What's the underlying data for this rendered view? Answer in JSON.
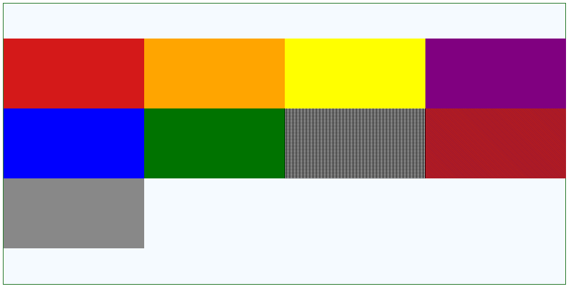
{
  "tiles": [
    {
      "color": "#d41919"
    },
    {
      "color": "#ffa500"
    },
    {
      "color": "#ffff00"
    },
    {
      "color": "#800080"
    },
    {
      "color": "#0000ff"
    },
    {
      "color": "#007300"
    },
    {
      "color": "#ffffff",
      "pattern": "dither-black"
    },
    {
      "color": "#b2182b",
      "pattern": "dither-red"
    },
    {
      "color": "#888888"
    }
  ]
}
